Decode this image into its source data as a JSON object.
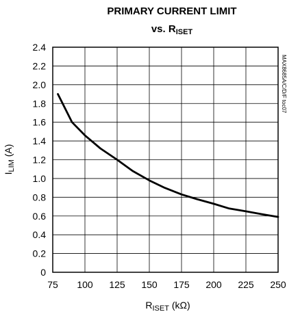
{
  "chart_data": {
    "type": "line",
    "title_line1": "PRIMARY CURRENT LIMIT",
    "title_line2_prefix": "vs. R",
    "title_line2_sub": "ISET",
    "xlabel_main": "R",
    "xlabel_sub": "ISET",
    "xlabel_unit": " (kΩ)",
    "ylabel_main": "I",
    "ylabel_sub": "LIM",
    "ylabel_unit": " (A)",
    "figure_id": "MAX8685A/C/D/F toc07",
    "xlim": [
      75,
      250
    ],
    "ylim": [
      0,
      2.4
    ],
    "x_ticks": [
      75,
      100,
      125,
      150,
      175,
      200,
      225,
      250
    ],
    "x_tick_labels": [
      "75",
      "100",
      "125",
      "150",
      "175",
      "200",
      "225",
      "250"
    ],
    "y_ticks": [
      0,
      0.2,
      0.4,
      0.6,
      0.8,
      1.0,
      1.2,
      1.4,
      1.6,
      1.8,
      2.0,
      2.2,
      2.4
    ],
    "y_tick_labels": [
      "0",
      "0.2",
      "0.4",
      "0.6",
      "0.8",
      "1.0",
      "1.2",
      "1.4",
      "1.6",
      "1.8",
      "2.0",
      "2.2",
      "2.4"
    ],
    "grid": true,
    "series": [
      {
        "color": "#000000",
        "x": [
          79,
          90,
          100,
          112,
          125,
          137,
          150,
          162,
          175,
          187,
          200,
          212,
          225,
          237,
          250
        ],
        "y": [
          1.9,
          1.6,
          1.46,
          1.32,
          1.2,
          1.08,
          0.98,
          0.9,
          0.83,
          0.78,
          0.73,
          0.68,
          0.65,
          0.62,
          0.59
        ]
      }
    ]
  }
}
